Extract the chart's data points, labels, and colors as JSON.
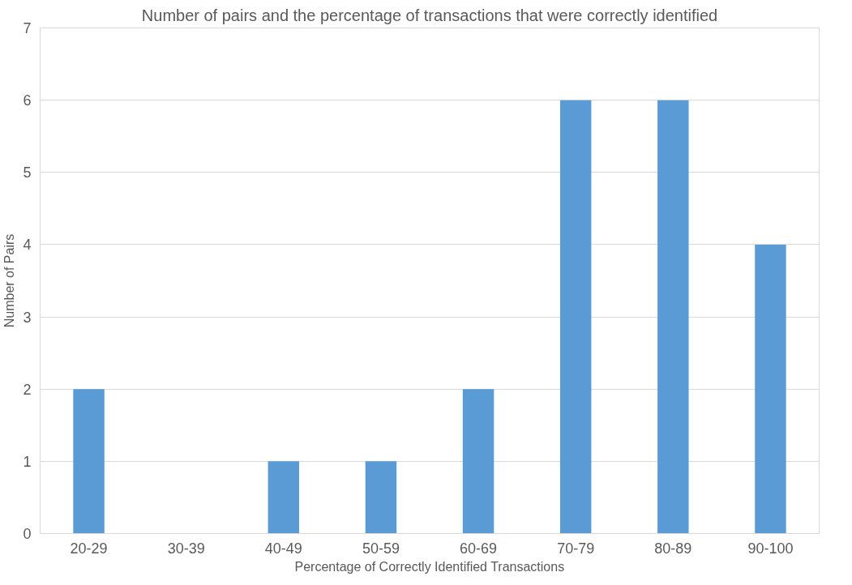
{
  "chart_data": {
    "type": "bar",
    "title": "Number of pairs and the percentage of transactions that were correctly identified",
    "xlabel": "Percentage of Correctly Identified Transactions",
    "ylabel": "Number of Pairs",
    "categories": [
      "20-29",
      "30-39",
      "40-49",
      "50-59",
      "60-69",
      "70-79",
      "80-89",
      "90-100"
    ],
    "values": [
      2,
      0,
      1,
      1,
      2,
      6,
      6,
      4
    ],
    "color": "#5b9bd5",
    "ylim": [
      0,
      7
    ],
    "yticks": [
      0,
      1,
      2,
      3,
      4,
      5,
      6,
      7
    ],
    "grid": "y"
  }
}
